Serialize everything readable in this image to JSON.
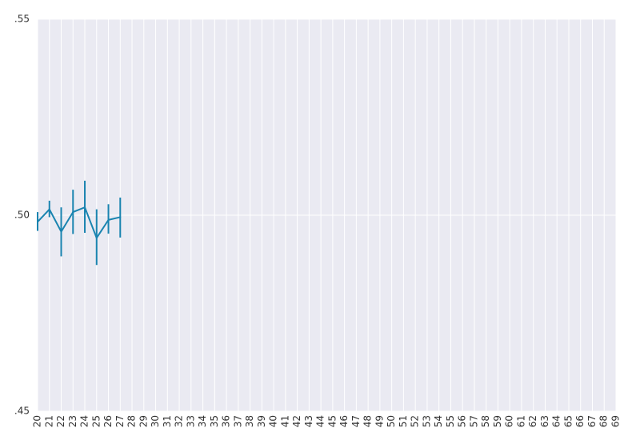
{
  "chart_data": {
    "type": "line",
    "x_ticks": [
      "20",
      "21",
      "22",
      "23",
      "24",
      "25",
      "26",
      "27",
      "28",
      "29",
      "30",
      "31",
      "32",
      "33",
      "34",
      "35",
      "36",
      "37",
      "38",
      "39",
      "40",
      "41",
      "42",
      "43",
      "44",
      "45",
      "46",
      "47",
      "48",
      "49",
      "50",
      "51",
      "52",
      "53",
      "54",
      "55",
      "56",
      "57",
      "58",
      "59",
      "60",
      "61",
      "62",
      "63",
      "64",
      "65",
      "66",
      "67",
      "68",
      "69"
    ],
    "y_ticks": [
      ".55",
      ".50",
      ".45"
    ],
    "y_tick_values": [
      0.55,
      0.5,
      0.45
    ],
    "xlim": [
      20,
      69
    ],
    "ylim": [
      0.45,
      0.55
    ],
    "grid": true,
    "series": [
      {
        "color": "#1a84b0",
        "x": [
          20,
          21,
          22,
          23,
          24,
          25,
          26,
          27
        ],
        "y": [
          0.4983,
          0.5015,
          0.4958,
          0.5008,
          0.502,
          0.4942,
          0.4988,
          0.4995
        ],
        "err_low": [
          0.496,
          0.4995,
          0.4895,
          0.4952,
          0.4955,
          0.4873,
          0.4953,
          0.4943
        ],
        "err_high": [
          0.5008,
          0.5037,
          0.502,
          0.5065,
          0.5088,
          0.5015,
          0.5028,
          0.5045
        ]
      }
    ]
  }
}
